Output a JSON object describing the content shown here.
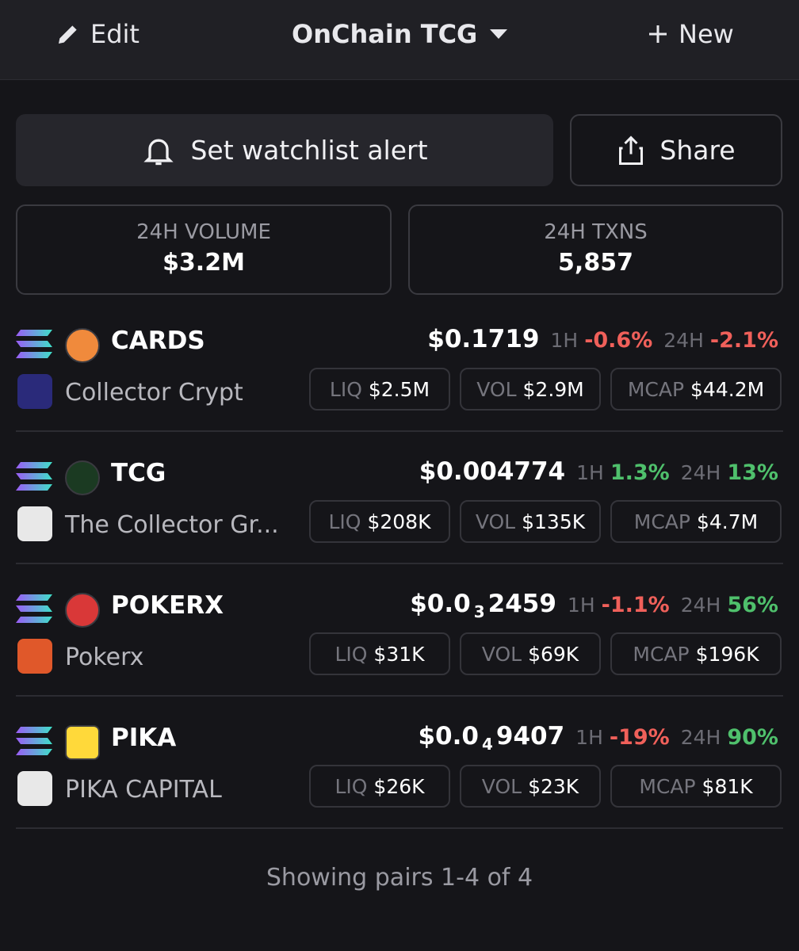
{
  "header": {
    "edit": "Edit",
    "title": "OnChain TCG",
    "new": "New"
  },
  "actions": {
    "alert": "Set watchlist alert",
    "share": "Share"
  },
  "stats": [
    {
      "label": "24H VOLUME",
      "value": "$3.2M"
    },
    {
      "label": "24H TXNS",
      "value": "5,857"
    }
  ],
  "labels": {
    "h1": "1H",
    "h24": "24H",
    "liq": "LIQ",
    "vol": "VOL",
    "mcap": "MCAP"
  },
  "pairs": [
    {
      "symbol": "CARDS",
      "name": "Collector Crypt",
      "price": "$0.1719",
      "change_1h": "-0.6%",
      "change_24h": "-2.1%",
      "liq": "$2.5M",
      "vol": "$2.9M",
      "mcap": "$44.2M"
    },
    {
      "symbol": "TCG",
      "name": "The Collector Gr...",
      "price": "$0.004774",
      "change_1h": "1.3%",
      "change_24h": "13%",
      "liq": "$208K",
      "vol": "$135K",
      "mcap": "$4.7M"
    },
    {
      "symbol": "POKERX",
      "name": "Pokerx",
      "price": {
        "main": "$0.0",
        "sub": "3",
        "rest": "2459"
      },
      "change_1h": "-1.1%",
      "change_24h": "56%",
      "liq": "$31K",
      "vol": "$69K",
      "mcap": "$196K"
    },
    {
      "symbol": "PIKA",
      "name": "PIKA CAPITAL",
      "price": {
        "main": "$0.0",
        "sub": "4",
        "rest": "9407"
      },
      "change_1h": "-19%",
      "change_24h": "90%",
      "liq": "$26K",
      "vol": "$23K",
      "mcap": "$81K"
    }
  ],
  "footer": "Showing pairs 1-4 of 4"
}
